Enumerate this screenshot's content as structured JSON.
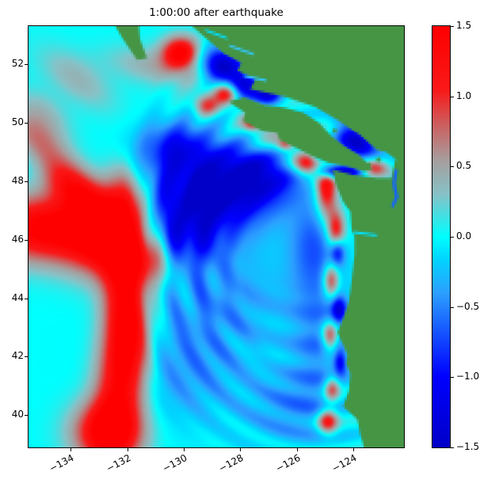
{
  "chart_data": {
    "type": "heatmap",
    "title": "1:00:00 after earthquake",
    "xlabel": "",
    "ylabel": "",
    "axes": {
      "x_range": [
        -135.5,
        -122.2
      ],
      "y_range": [
        38.9,
        53.3
      ],
      "x_ticks": [
        {
          "value": -134,
          "label": "−134"
        },
        {
          "value": -132,
          "label": "−132"
        },
        {
          "value": -130,
          "label": "−130"
        },
        {
          "value": -128,
          "label": "−128"
        },
        {
          "value": -126,
          "label": "−126"
        },
        {
          "value": -124,
          "label": "−124"
        }
      ],
      "y_ticks": [
        {
          "value": 40,
          "label": "40"
        },
        {
          "value": 42,
          "label": "42"
        },
        {
          "value": 44,
          "label": "44"
        },
        {
          "value": 46,
          "label": "46"
        },
        {
          "value": 48,
          "label": "48"
        },
        {
          "value": 50,
          "label": "50"
        },
        {
          "value": 52,
          "label": "52"
        }
      ]
    },
    "colorbar": {
      "min": -1.5,
      "max": 1.5,
      "ticks": [
        {
          "value": 1.5,
          "label": "1.5"
        },
        {
          "value": 1.0,
          "label": "1.0"
        },
        {
          "value": 0.5,
          "label": "0.5"
        },
        {
          "value": 0.0,
          "label": "0.0"
        },
        {
          "value": -0.5,
          "label": "−0.5"
        },
        {
          "value": -1.0,
          "label": "−1.0"
        },
        {
          "value": -1.5,
          "label": "−1.5"
        }
      ]
    },
    "colormap_stops": [
      [
        -1.5,
        [
          0,
          0,
          200
        ]
      ],
      [
        -1.0,
        [
          0,
          0,
          255
        ]
      ],
      [
        -0.7,
        [
          20,
          80,
          255
        ]
      ],
      [
        -0.4,
        [
          45,
          160,
          255
        ]
      ],
      [
        -0.15,
        [
          0,
          215,
          255
        ]
      ],
      [
        0.0,
        [
          0,
          255,
          255
        ]
      ],
      [
        0.3,
        [
          135,
          195,
          200
        ]
      ],
      [
        0.55,
        [
          168,
          158,
          158
        ]
      ],
      [
        0.8,
        [
          205,
          95,
          95
        ]
      ],
      [
        1.05,
        [
          250,
          25,
          25
        ]
      ],
      [
        1.5,
        [
          255,
          0,
          0
        ]
      ]
    ],
    "land_color": "#459545",
    "ocean_background_value": 0.0,
    "wave_features": [
      {
        "lon": -132.7,
        "lat": 46.1,
        "slon": 1.05,
        "slat": 0.9,
        "amp": 1.7
      },
      {
        "lon": -135.1,
        "lat": 46.4,
        "slon": 1.3,
        "slat": 0.8,
        "amp": 1.5
      },
      {
        "lon": -134.0,
        "lat": 47.9,
        "slon": 1.2,
        "slat": 0.5,
        "amp": 1.2,
        "rot": -38
      },
      {
        "lon": -135.2,
        "lat": 49.5,
        "slon": 0.9,
        "slat": 0.5,
        "amp": 0.6,
        "rot": -38
      },
      {
        "lon": -132.0,
        "lat": 47.5,
        "slon": 0.5,
        "slat": 0.8,
        "amp": 0.9,
        "rot": 12
      },
      {
        "lon": -131.3,
        "lat": 45.3,
        "slon": 0.75,
        "slat": 0.6,
        "amp": 0.9
      },
      {
        "lon": -132.0,
        "lat": 43.6,
        "slon": 0.55,
        "slat": 1.6,
        "amp": 1.4,
        "rot": 6
      },
      {
        "lon": -132.3,
        "lat": 41.2,
        "slon": 0.6,
        "slat": 1.5,
        "amp": 1.3,
        "rot": -4
      },
      {
        "lon": -132.7,
        "lat": 39.4,
        "slon": 0.85,
        "slat": 0.75,
        "amp": 1.5
      },
      {
        "lon": -130.9,
        "lat": 51.9,
        "slon": 1.3,
        "slat": 0.45,
        "amp": 0.45,
        "rot": -10
      },
      {
        "lon": -133.8,
        "lat": 51.5,
        "slon": 1.1,
        "slat": 0.5,
        "amp": 0.4,
        "rot": -35
      },
      {
        "lon": -135.0,
        "lat": 50.4,
        "slon": 0.8,
        "slat": 0.45,
        "amp": 0.3,
        "rot": -35
      },
      {
        "lon": -135.2,
        "lat": 48.6,
        "slon": 0.8,
        "slat": 0.5,
        "amp": -0.35,
        "rot": -30
      },
      {
        "lon": -129.3,
        "lat": 47.5,
        "slon": 1.5,
        "slat": 1.1,
        "amp": -1.45
      },
      {
        "lon": -127.3,
        "lat": 48.2,
        "slon": 1.1,
        "slat": 0.75,
        "amp": -1.05
      },
      {
        "lon": -130.3,
        "lat": 49.2,
        "slon": 0.85,
        "slat": 0.6,
        "amp": -0.8
      },
      {
        "lon": -130.2,
        "lat": 45.9,
        "slon": 0.95,
        "slat": 0.75,
        "amp": -0.75
      },
      {
        "lon": -128.6,
        "lat": 44.0,
        "slon": 1.7,
        "slat": 1.1,
        "amp": -0.4
      },
      {
        "lon": -129.9,
        "lat": 41.6,
        "slon": 1.6,
        "slat": 1.3,
        "amp": -0.45
      },
      {
        "lon": -125.2,
        "lat": 42.8,
        "slon": 0.75,
        "slat": 1.9,
        "amp": -0.5
      },
      {
        "lon": -125.4,
        "lat": 45.9,
        "slon": 0.6,
        "slat": 1.0,
        "amp": -0.55
      },
      {
        "lon": -126.3,
        "lat": 40.2,
        "slon": 1.1,
        "slat": 0.9,
        "amp": -0.4
      },
      {
        "lon": -130.1,
        "lat": 52.4,
        "slon": 0.45,
        "slat": 0.38,
        "amp": 1.5
      },
      {
        "lon": -128.7,
        "lat": 52.0,
        "slon": 0.5,
        "slat": 0.4,
        "amp": -1.5
      },
      {
        "lon": -127.9,
        "lat": 51.3,
        "slon": 0.42,
        "slat": 0.35,
        "amp": -1.4
      },
      {
        "lon": -128.5,
        "lat": 51.0,
        "slon": 0.3,
        "slat": 0.25,
        "amp": 1.2
      },
      {
        "lon": -127.0,
        "lat": 50.95,
        "slon": 0.35,
        "slat": 0.28,
        "amp": -1.2
      },
      {
        "lon": -129.2,
        "lat": 50.6,
        "slon": 0.3,
        "slat": 0.25,
        "amp": 0.9
      },
      {
        "lon": -127.0,
        "lat": 49.6,
        "slon": 0.95,
        "slat": 0.45,
        "amp": 0.55,
        "rot": -35
      },
      {
        "lon": -126.4,
        "lat": 49.25,
        "slon": 0.2,
        "slat": 0.15,
        "amp": 0.8
      },
      {
        "lon": -127.6,
        "lat": 49.95,
        "slon": 0.2,
        "slat": 0.15,
        "amp": 0.7
      },
      {
        "lon": -125.6,
        "lat": 48.6,
        "slon": 0.38,
        "slat": 0.28,
        "amp": 1.4
      },
      {
        "lon": -125.1,
        "lat": 48.85,
        "slon": 0.3,
        "slat": 0.25,
        "amp": -1.2
      },
      {
        "lon": -124.95,
        "lat": 48.35,
        "slon": 0.28,
        "slat": 0.2,
        "amp": -1.2
      },
      {
        "lon": -124.2,
        "lat": 48.32,
        "slon": 0.5,
        "slat": 0.16,
        "amp": -1.2
      },
      {
        "lon": -123.3,
        "lat": 48.42,
        "slon": 0.35,
        "slat": 0.22,
        "amp": 1.1
      },
      {
        "lon": -123.9,
        "lat": 49.4,
        "slon": 0.55,
        "slat": 0.4,
        "amp": -1.4,
        "rot": -42
      },
      {
        "lon": -124.95,
        "lat": 47.9,
        "slon": 0.26,
        "slat": 0.8,
        "amp": 1.5
      },
      {
        "lon": -124.6,
        "lat": 46.3,
        "slon": 0.22,
        "slat": 0.5,
        "amp": 1.3
      },
      {
        "lon": -124.55,
        "lat": 45.6,
        "slon": 0.18,
        "slat": 0.33,
        "amp": -1.0
      },
      {
        "lon": -124.78,
        "lat": 44.6,
        "slon": 0.2,
        "slat": 0.4,
        "amp": 1.2
      },
      {
        "lon": -124.5,
        "lat": 43.6,
        "slon": 0.18,
        "slat": 0.33,
        "amp": -1.0
      },
      {
        "lon": -124.82,
        "lat": 42.7,
        "slon": 0.2,
        "slat": 0.35,
        "amp": 1.2
      },
      {
        "lon": -124.45,
        "lat": 41.8,
        "slon": 0.16,
        "slat": 0.3,
        "amp": -0.9
      },
      {
        "lon": -124.75,
        "lat": 40.9,
        "slon": 0.2,
        "slat": 0.3,
        "amp": 1.1
      },
      {
        "lon": -124.9,
        "lat": 39.8,
        "slon": 0.25,
        "slat": 0.3,
        "amp": 1.3
      }
    ],
    "ripples": [
      {
        "cx": -124.9,
        "cy": 44.8,
        "wavelength": 1.0,
        "amp": 0.17,
        "r_inner": 2.8,
        "r_outer": 7.5
      },
      {
        "cx": -125.4,
        "cy": 47.6,
        "wavelength": 1.15,
        "amp": 0.12,
        "r_inner": 3.2,
        "r_outer": 7.0
      }
    ],
    "coast": {
      "polygons": [
        {
          "name": "mainland",
          "points": [
            [
              -123.55,
              38.7
            ],
            [
              -123.75,
              39.35
            ],
            [
              -123.85,
              39.85
            ],
            [
              -124.35,
              40.3
            ],
            [
              -124.15,
              40.85
            ],
            [
              -124.1,
              41.4
            ],
            [
              -124.25,
              41.75
            ],
            [
              -124.2,
              42.05
            ],
            [
              -124.4,
              42.5
            ],
            [
              -124.55,
              42.85
            ],
            [
              -124.35,
              43.3
            ],
            [
              -124.15,
              43.9
            ],
            [
              -124.05,
              44.65
            ],
            [
              -123.95,
              45.5
            ],
            [
              -123.95,
              46.15
            ],
            [
              -124.05,
              46.3
            ],
            [
              -124.1,
              46.95
            ],
            [
              -124.35,
              47.3
            ],
            [
              -124.6,
              47.85
            ],
            [
              -124.72,
              48.38
            ],
            [
              -124.0,
              48.2
            ],
            [
              -123.15,
              48.1
            ],
            [
              -122.65,
              48.1
            ],
            [
              -122.5,
              48.75
            ],
            [
              -122.85,
              49.0
            ],
            [
              -123.15,
              49.05
            ],
            [
              -123.75,
              49.55
            ],
            [
              -124.55,
              50.1
            ],
            [
              -125.35,
              50.55
            ],
            [
              -126.4,
              50.9
            ],
            [
              -127.65,
              51.15
            ],
            [
              -127.45,
              51.5
            ],
            [
              -128.1,
              51.78
            ],
            [
              -127.95,
              52.05
            ],
            [
              -128.55,
              52.35
            ],
            [
              -129.1,
              52.8
            ],
            [
              -129.95,
              53.5
            ],
            [
              -121.9,
              53.5
            ],
            [
              -121.9,
              38.7
            ]
          ]
        },
        {
          "name": "vancouver-island",
          "points": [
            [
              -123.3,
              48.4
            ],
            [
              -123.6,
              48.33
            ],
            [
              -124.25,
              48.5
            ],
            [
              -124.9,
              48.63
            ],
            [
              -125.5,
              48.88
            ],
            [
              -125.9,
              49.08
            ],
            [
              -126.6,
              49.4
            ],
            [
              -126.7,
              49.63
            ],
            [
              -127.2,
              49.73
            ],
            [
              -127.9,
              50.06
            ],
            [
              -127.82,
              50.34
            ],
            [
              -128.42,
              50.74
            ],
            [
              -127.85,
              50.88
            ],
            [
              -127.15,
              50.62
            ],
            [
              -126.45,
              50.52
            ],
            [
              -125.75,
              50.34
            ],
            [
              -125.2,
              50.0
            ],
            [
              -124.8,
              49.55
            ],
            [
              -124.35,
              49.22
            ],
            [
              -123.8,
              48.9
            ],
            [
              -123.5,
              48.6
            ]
          ]
        },
        {
          "name": "haida-gwaii-tip",
          "points": [
            [
              -132.55,
              53.5
            ],
            [
              -132.15,
              52.85
            ],
            [
              -131.65,
              52.15
            ],
            [
              -131.3,
              52.2
            ],
            [
              -131.55,
              52.85
            ],
            [
              -131.6,
              53.5
            ]
          ]
        }
      ],
      "islets": [
        {
          "lon": -123.45,
          "lat": 48.55,
          "r": 0.09
        },
        {
          "lon": -123.1,
          "lat": 48.72,
          "r": 0.07
        },
        {
          "lon": -124.65,
          "lat": 49.72,
          "r": 0.08
        }
      ],
      "channels": [
        {
          "points": [
            [
              -122.48,
              48.35
            ],
            [
              -122.55,
              47.9
            ],
            [
              -122.45,
              47.45
            ],
            [
              -122.6,
              47.15
            ]
          ],
          "width": 4,
          "color": "#1464ff"
        },
        {
          "points": [
            [
              -123.95,
              46.25
            ],
            [
              -123.2,
              46.15
            ]
          ],
          "width": 2,
          "color": "#00e1ff"
        },
        {
          "points": [
            [
              -129.2,
              53.15
            ],
            [
              -128.5,
              52.9
            ]
          ],
          "width": 3,
          "color": "#00e1ff"
        },
        {
          "points": [
            [
              -128.35,
              52.62
            ],
            [
              -127.55,
              52.35
            ]
          ],
          "width": 2,
          "color": "#32c8ff"
        },
        {
          "points": [
            [
              -127.85,
              51.6
            ],
            [
              -127.1,
              51.45
            ]
          ],
          "width": 2,
          "color": "#32c8ff"
        }
      ]
    }
  }
}
